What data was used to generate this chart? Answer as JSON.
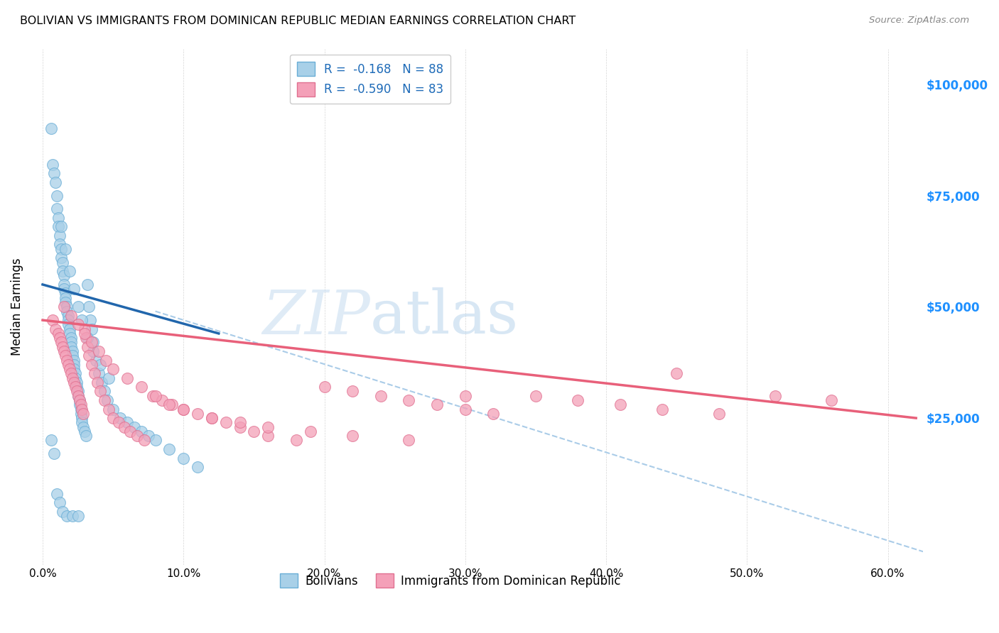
{
  "title": "BOLIVIAN VS IMMIGRANTS FROM DOMINICAN REPUBLIC MEDIAN EARNINGS CORRELATION CHART",
  "source": "Source: ZipAtlas.com",
  "xlabel_ticks": [
    "0.0%",
    "10.0%",
    "20.0%",
    "30.0%",
    "40.0%",
    "50.0%",
    "60.0%"
  ],
  "xlabel_vals": [
    0.0,
    0.1,
    0.2,
    0.3,
    0.4,
    0.5,
    0.6
  ],
  "ylabel_ticks": [
    "$25,000",
    "$50,000",
    "$75,000",
    "$100,000"
  ],
  "ylabel_vals": [
    25000,
    50000,
    75000,
    100000
  ],
  "xlim": [
    -0.008,
    0.625
  ],
  "ylim": [
    -8000,
    108000
  ],
  "legend_label1": "Bolivians",
  "legend_label2": "Immigrants from Dominican Republic",
  "R1": "-0.168",
  "N1": "88",
  "R2": "-0.590",
  "N2": "83",
  "color_blue": "#A8D0E8",
  "color_pink": "#F4A0B8",
  "edge_blue": "#6AAED6",
  "edge_pink": "#E07090",
  "line_blue": "#2166AC",
  "line_pink": "#E8607A",
  "line_dashed_color": "#AACCE8",
  "blue_scatter_x": [
    0.006,
    0.007,
    0.008,
    0.009,
    0.01,
    0.01,
    0.011,
    0.011,
    0.012,
    0.012,
    0.013,
    0.013,
    0.014,
    0.014,
    0.015,
    0.015,
    0.015,
    0.016,
    0.016,
    0.016,
    0.017,
    0.017,
    0.018,
    0.018,
    0.018,
    0.019,
    0.019,
    0.02,
    0.02,
    0.02,
    0.021,
    0.021,
    0.022,
    0.022,
    0.022,
    0.023,
    0.023,
    0.024,
    0.024,
    0.025,
    0.025,
    0.026,
    0.026,
    0.027,
    0.027,
    0.028,
    0.028,
    0.029,
    0.03,
    0.031,
    0.032,
    0.033,
    0.034,
    0.035,
    0.036,
    0.038,
    0.04,
    0.042,
    0.044,
    0.046,
    0.05,
    0.055,
    0.06,
    0.065,
    0.07,
    0.075,
    0.08,
    0.09,
    0.1,
    0.11,
    0.013,
    0.016,
    0.019,
    0.022,
    0.025,
    0.028,
    0.032,
    0.036,
    0.041,
    0.047,
    0.006,
    0.008,
    0.01,
    0.012,
    0.014,
    0.017,
    0.021,
    0.025
  ],
  "blue_scatter_y": [
    90000,
    82000,
    80000,
    78000,
    75000,
    72000,
    70000,
    68000,
    66000,
    64000,
    63000,
    61000,
    60000,
    58000,
    57000,
    55000,
    54000,
    53000,
    52000,
    51000,
    50000,
    49000,
    48000,
    47000,
    46000,
    45000,
    44000,
    43000,
    42000,
    41000,
    40000,
    39000,
    38000,
    37000,
    36000,
    35000,
    34000,
    33000,
    32000,
    31000,
    30000,
    29000,
    28000,
    27000,
    26000,
    25000,
    24000,
    23000,
    22000,
    21000,
    55000,
    50000,
    47000,
    45000,
    42000,
    38000,
    35000,
    33000,
    31000,
    29000,
    27000,
    25000,
    24000,
    23000,
    22000,
    21000,
    20000,
    18000,
    16000,
    14000,
    68000,
    63000,
    58000,
    54000,
    50000,
    47000,
    43000,
    40000,
    37000,
    34000,
    20000,
    17000,
    8000,
    6000,
    4000,
    3000,
    3000,
    3000
  ],
  "pink_scatter_x": [
    0.007,
    0.009,
    0.011,
    0.012,
    0.013,
    0.014,
    0.015,
    0.016,
    0.017,
    0.018,
    0.019,
    0.02,
    0.021,
    0.022,
    0.023,
    0.024,
    0.025,
    0.026,
    0.027,
    0.028,
    0.029,
    0.03,
    0.031,
    0.032,
    0.033,
    0.035,
    0.037,
    0.039,
    0.041,
    0.044,
    0.047,
    0.05,
    0.054,
    0.058,
    0.062,
    0.067,
    0.072,
    0.078,
    0.085,
    0.092,
    0.1,
    0.11,
    0.12,
    0.13,
    0.14,
    0.15,
    0.16,
    0.18,
    0.2,
    0.22,
    0.24,
    0.26,
    0.28,
    0.3,
    0.32,
    0.35,
    0.38,
    0.41,
    0.44,
    0.48,
    0.52,
    0.56,
    0.015,
    0.02,
    0.025,
    0.03,
    0.035,
    0.04,
    0.045,
    0.05,
    0.06,
    0.07,
    0.08,
    0.09,
    0.1,
    0.12,
    0.14,
    0.16,
    0.19,
    0.22,
    0.26,
    0.3,
    0.45
  ],
  "pink_scatter_y": [
    47000,
    45000,
    44000,
    43000,
    42000,
    41000,
    40000,
    39000,
    38000,
    37000,
    36000,
    35000,
    34000,
    33000,
    32000,
    31000,
    30000,
    29000,
    28000,
    27000,
    26000,
    45000,
    43000,
    41000,
    39000,
    37000,
    35000,
    33000,
    31000,
    29000,
    27000,
    25000,
    24000,
    23000,
    22000,
    21000,
    20000,
    30000,
    29000,
    28000,
    27000,
    26000,
    25000,
    24000,
    23000,
    22000,
    21000,
    20000,
    32000,
    31000,
    30000,
    29000,
    28000,
    27000,
    26000,
    30000,
    29000,
    28000,
    27000,
    26000,
    30000,
    29000,
    50000,
    48000,
    46000,
    44000,
    42000,
    40000,
    38000,
    36000,
    34000,
    32000,
    30000,
    28000,
    27000,
    25000,
    24000,
    23000,
    22000,
    21000,
    20000,
    30000,
    35000
  ]
}
